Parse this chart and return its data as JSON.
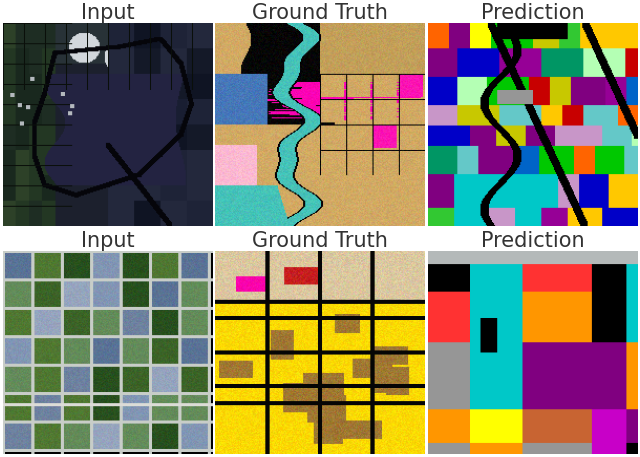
{
  "titles_row1": [
    "Input",
    "Ground Truth",
    "Prediction"
  ],
  "titles_row2": [
    "Input",
    "Ground Truth",
    "Prediction"
  ],
  "title_fontsize": 15,
  "title_color": "#333333",
  "figsize": [
    6.4,
    4.57
  ],
  "dpi": 100,
  "background_color": "#ffffff",
  "gt1_colors": {
    "tan": [
      210,
      180,
      140
    ],
    "magenta": [
      255,
      0,
      200
    ],
    "black": [
      0,
      0,
      0
    ],
    "blue": [
      70,
      130,
      180
    ],
    "cyan": [
      70,
      200,
      190
    ],
    "pink": [
      255,
      180,
      200
    ],
    "orange": [
      200,
      130,
      50
    ],
    "green": [
      80,
      160,
      80
    ],
    "yellow": [
      240,
      220,
      100
    ]
  },
  "gt2_colors": {
    "yellow": [
      255,
      220,
      0
    ],
    "tan": [
      180,
      140,
      60
    ],
    "black": [
      0,
      0,
      0
    ],
    "magenta": [
      255,
      0,
      180
    ],
    "red": [
      180,
      30,
      30
    ],
    "beige": [
      230,
      220,
      190
    ],
    "orange": [
      200,
      150,
      50
    ]
  }
}
